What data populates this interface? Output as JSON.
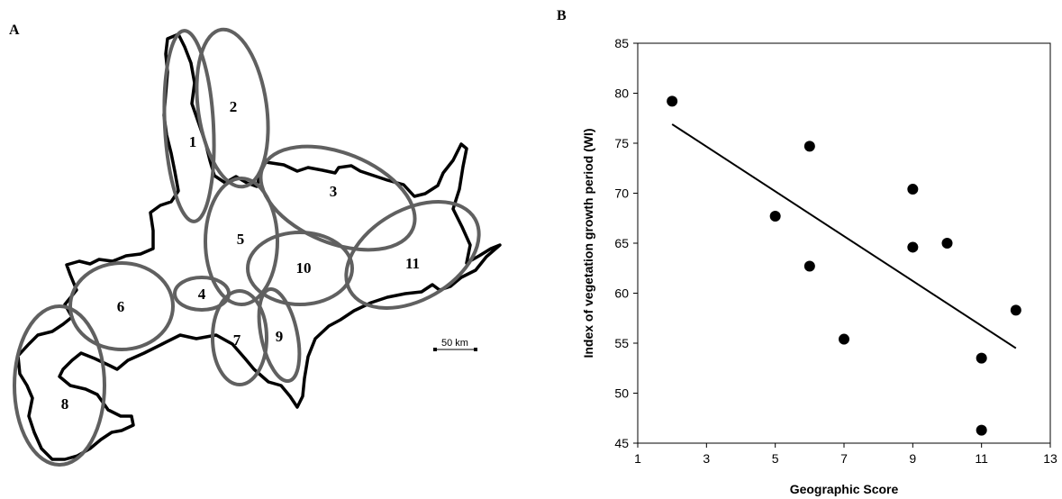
{
  "panel_a": {
    "letter": "A",
    "regions": [
      "1",
      "2",
      "3",
      "4",
      "5",
      "6",
      "7",
      "8",
      "9",
      "10",
      "11"
    ],
    "scale_label": "50 km",
    "colors": {
      "coast": "#000000",
      "ellipse": "#606060"
    }
  },
  "chart_data": {
    "type": "scatter",
    "panel_letter": "B",
    "title": "",
    "xlabel": "Geographic Score",
    "ylabel": "Index of vegetation growth period (WI)",
    "xlim": [
      1,
      13
    ],
    "ylim": [
      45,
      85
    ],
    "xticks": [
      1,
      3,
      5,
      7,
      9,
      11,
      13
    ],
    "yticks": [
      45,
      50,
      55,
      60,
      65,
      70,
      75,
      80,
      85
    ],
    "grid": false,
    "points": [
      {
        "x": 2,
        "y": 79.2
      },
      {
        "x": 5,
        "y": 67.7
      },
      {
        "x": 6,
        "y": 74.7
      },
      {
        "x": 6,
        "y": 62.7
      },
      {
        "x": 7,
        "y": 55.4
      },
      {
        "x": 9,
        "y": 70.4
      },
      {
        "x": 9,
        "y": 64.6
      },
      {
        "x": 10,
        "y": 65.0
      },
      {
        "x": 11,
        "y": 53.5
      },
      {
        "x": 11,
        "y": 46.3
      },
      {
        "x": 12,
        "y": 58.3
      }
    ],
    "trendline": {
      "x": [
        2,
        12
      ],
      "y": [
        76.9,
        54.5
      ]
    },
    "colors": {
      "marker": "#000000",
      "line": "#000000"
    }
  }
}
